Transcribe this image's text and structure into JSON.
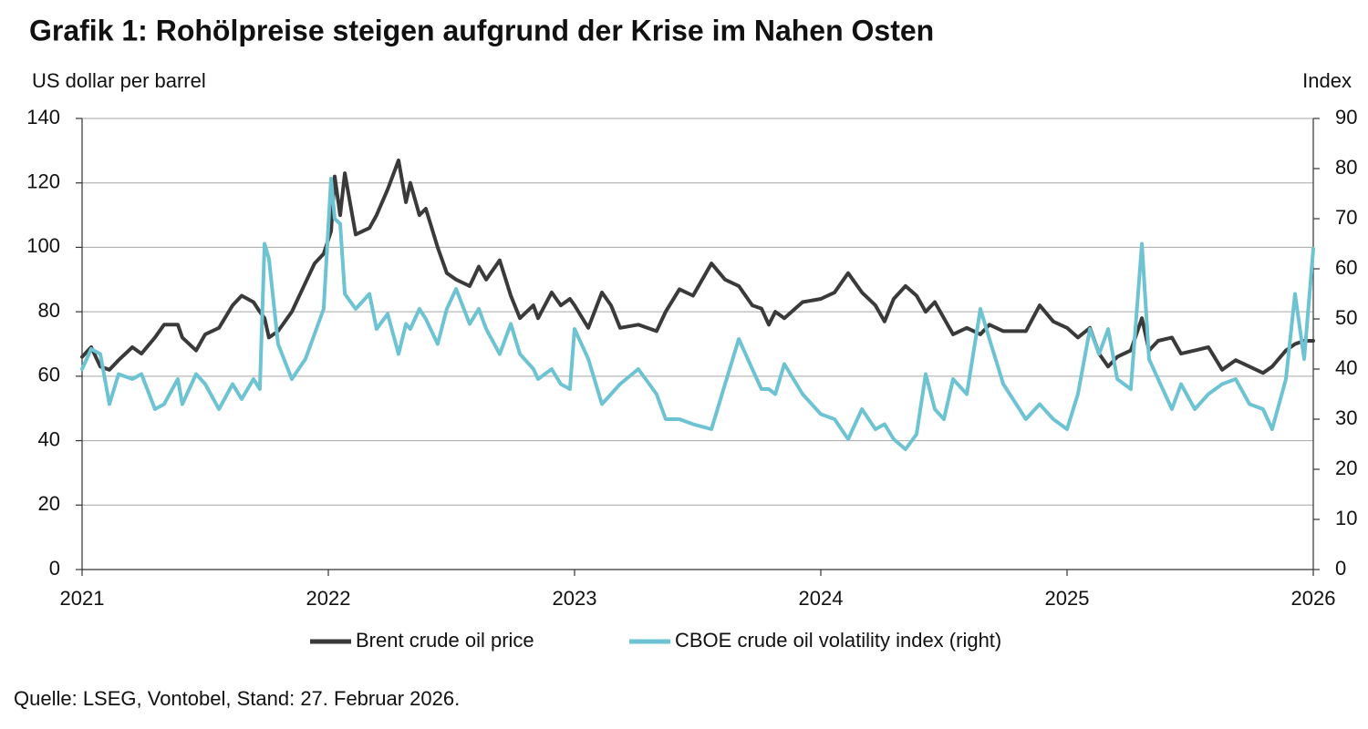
{
  "chart_data": {
    "type": "line",
    "title": "Grafik 1: Rohölpreise steigen aufgrund der Krise im Nahen Osten",
    "y_label": "US dollar per barrel",
    "y2_label": "Index",
    "note": "Quelle: LSEG, Vontobel, Stand: 27. Februar 2026.",
    "xlim": [
      2021,
      2026
    ],
    "xticks": [
      2021,
      2022,
      2023,
      2024,
      2025,
      2026
    ],
    "ylim": [
      0,
      140
    ],
    "yticks": [
      0,
      20,
      40,
      60,
      80,
      100,
      120,
      140
    ],
    "y2lim": [
      0,
      90
    ],
    "y2ticks": [
      0,
      10,
      20,
      30,
      40,
      50,
      60,
      70,
      80,
      90
    ],
    "grid": true,
    "legend": "bottom",
    "x": [
      2021.0,
      2021.037,
      2021.074,
      2021.111,
      2021.148,
      2021.204,
      2021.241,
      2021.296,
      2021.333,
      2021.389,
      2021.407,
      2021.463,
      2021.5,
      2021.556,
      2021.611,
      2021.648,
      2021.696,
      2021.722,
      2021.741,
      2021.759,
      2021.796,
      2021.852,
      2021.907,
      2021.944,
      2021.981,
      2022.011,
      2022.026,
      2022.048,
      2022.067,
      2022.111,
      2022.167,
      2022.196,
      2022.241,
      2022.285,
      2022.315,
      2022.333,
      2022.37,
      2022.396,
      2022.444,
      2022.481,
      2022.519,
      2022.574,
      2022.611,
      2022.641,
      2022.696,
      2022.741,
      2022.778,
      2022.833,
      2022.852,
      2022.907,
      2022.944,
      2022.981,
      2023.0,
      2023.056,
      2023.111,
      2023.148,
      2023.185,
      2023.259,
      2023.333,
      2023.37,
      2023.426,
      2023.481,
      2023.556,
      2023.611,
      2023.667,
      2023.722,
      2023.759,
      2023.789,
      2023.815,
      2023.852,
      2023.926,
      2024.0,
      2024.056,
      2024.111,
      2024.167,
      2024.222,
      2024.259,
      2024.296,
      2024.344,
      2024.389,
      2024.426,
      2024.463,
      2024.5,
      2024.537,
      2024.593,
      2024.648,
      2024.685,
      2024.741,
      2024.833,
      2024.889,
      2024.944,
      2025.0,
      2025.044,
      2025.093,
      2025.13,
      2025.167,
      2025.204,
      2025.259,
      2025.304,
      2025.333,
      2025.37,
      2025.426,
      2025.463,
      2025.519,
      2025.574,
      2025.63,
      2025.685,
      2025.741,
      2025.796,
      2025.833,
      2025.889,
      2025.926,
      2025.963,
      2026.0
    ],
    "series": [
      {
        "name": "Brent crude oil price",
        "color": "#3a3a3a",
        "axis": "y",
        "values": [
          66,
          69,
          63,
          62,
          65,
          69,
          67,
          72,
          76,
          76,
          72,
          68,
          73,
          75,
          82,
          85,
          83,
          80,
          78,
          72,
          74,
          80,
          89,
          95,
          98,
          105,
          122,
          110,
          123,
          104,
          106,
          110,
          118,
          127,
          114,
          120,
          110,
          112,
          100,
          92,
          90,
          88,
          94,
          90,
          96,
          85,
          78,
          82,
          78,
          86,
          82,
          84,
          82,
          75,
          86,
          82,
          75,
          76,
          74,
          80,
          87,
          85,
          95,
          90,
          88,
          82,
          81,
          76,
          80,
          78,
          83,
          84,
          86,
          92,
          86,
          82,
          77,
          84,
          88,
          85,
          80,
          83,
          78,
          73,
          75,
          73,
          76,
          74,
          74,
          82,
          77,
          75,
          72,
          75,
          67,
          63,
          66,
          68,
          78,
          68,
          71,
          72,
          67,
          68,
          69,
          62,
          65,
          63,
          61,
          63,
          68,
          70,
          71,
          71
        ]
      },
      {
        "name": "CBOE crude oil volatility index (right)",
        "color": "#6ec3d3",
        "axis": "y2",
        "values": [
          40,
          44,
          43,
          33,
          39,
          38,
          39,
          32,
          33,
          38,
          33,
          39,
          37,
          32,
          37,
          34,
          38,
          36,
          65,
          62,
          45,
          38,
          42,
          47,
          52,
          78,
          70,
          69,
          55,
          52,
          55,
          48,
          51,
          43,
          49,
          48,
          52,
          50,
          45,
          52,
          56,
          49,
          52,
          48,
          43,
          49,
          43,
          40,
          38,
          40,
          37,
          36,
          48,
          42,
          33,
          35,
          37,
          40,
          35,
          30,
          30,
          29,
          28,
          37,
          46,
          40,
          36,
          36,
          35,
          41,
          35,
          31,
          30,
          26,
          32,
          28,
          29,
          26,
          24,
          27,
          39,
          32,
          30,
          38,
          35,
          52,
          46,
          37,
          30,
          33,
          30,
          28,
          35,
          48,
          43,
          48,
          38,
          36,
          65,
          42,
          38,
          32,
          37,
          32,
          35,
          37,
          38,
          33,
          32,
          28,
          38,
          55,
          42,
          64
        ]
      }
    ]
  }
}
